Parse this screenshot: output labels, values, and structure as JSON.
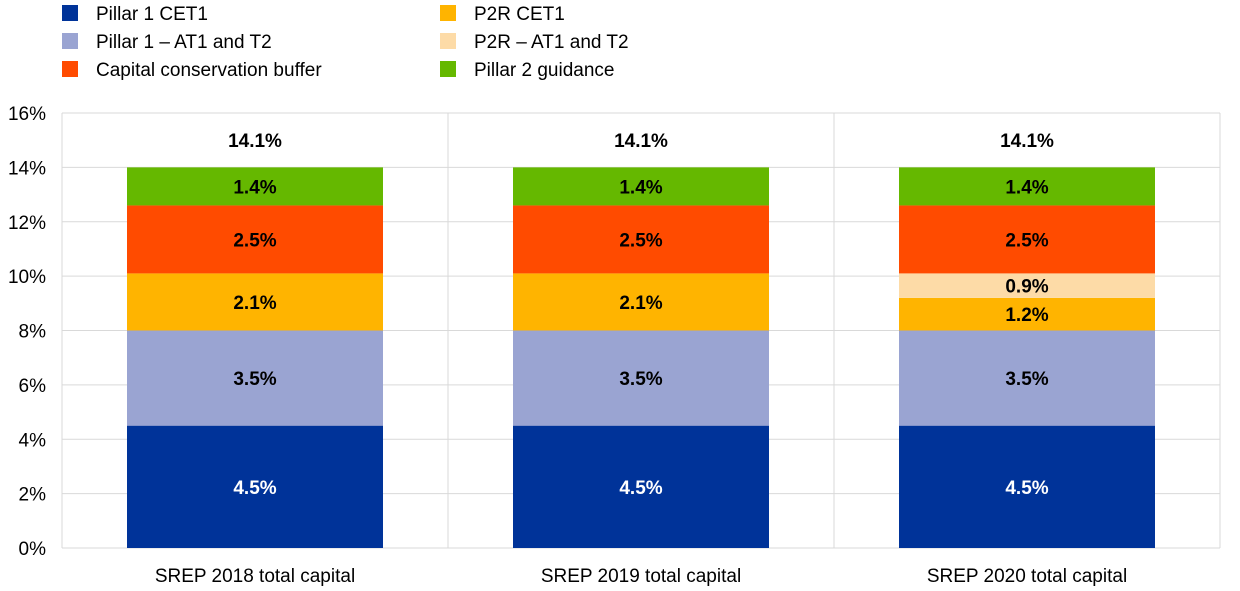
{
  "chart_data": {
    "type": "bar",
    "stacked": true,
    "categories": [
      "SREP 2018 total capital",
      "SREP 2019 total capital",
      "SREP 2020 total capital"
    ],
    "series": [
      {
        "name": "Pillar 1 CET1",
        "color": "#003399",
        "label_color": "#ffffff",
        "values": [
          4.5,
          4.5,
          4.5
        ],
        "labels": [
          "4.5%",
          "4.5%",
          "4.5%"
        ]
      },
      {
        "name": "Pillar 1 – AT1 and T2",
        "color": "#9aa4d2",
        "label_color": "#000000",
        "values": [
          3.5,
          3.5,
          3.5
        ],
        "labels": [
          "3.5%",
          "3.5%",
          "3.5%"
        ]
      },
      {
        "name": "P2R CET1",
        "color": "#ffb400",
        "label_color": "#000000",
        "values": [
          2.1,
          2.1,
          1.2
        ],
        "labels": [
          "2.1%",
          "2.1%",
          "1.2%"
        ]
      },
      {
        "name": "P2R – AT1 and T2",
        "color": "#fddba7",
        "label_color": "#000000",
        "values": [
          0,
          0,
          0.9
        ],
        "labels": [
          "",
          "",
          "0.9%"
        ]
      },
      {
        "name": "Capital conservation buffer",
        "color": "#ff4b00",
        "label_color": "#000000",
        "values": [
          2.5,
          2.5,
          2.5
        ],
        "labels": [
          "2.5%",
          "2.5%",
          "2.5%"
        ]
      },
      {
        "name": "Pillar 2 guidance",
        "color": "#65b800",
        "label_color": "#000000",
        "values": [
          1.4,
          1.4,
          1.4
        ],
        "labels": [
          "1.4%",
          "1.4%",
          "1.4%"
        ]
      }
    ],
    "totals": [
      "14.1%",
      "14.1%",
      "14.1%"
    ],
    "legend_order": [
      0,
      2,
      1,
      3,
      4,
      5
    ],
    "ylim": [
      0,
      16
    ],
    "yticks": [
      "0%",
      "2%",
      "4%",
      "6%",
      "8%",
      "10%",
      "12%",
      "14%",
      "16%"
    ],
    "legend_position": "top-left",
    "grid": true
  }
}
